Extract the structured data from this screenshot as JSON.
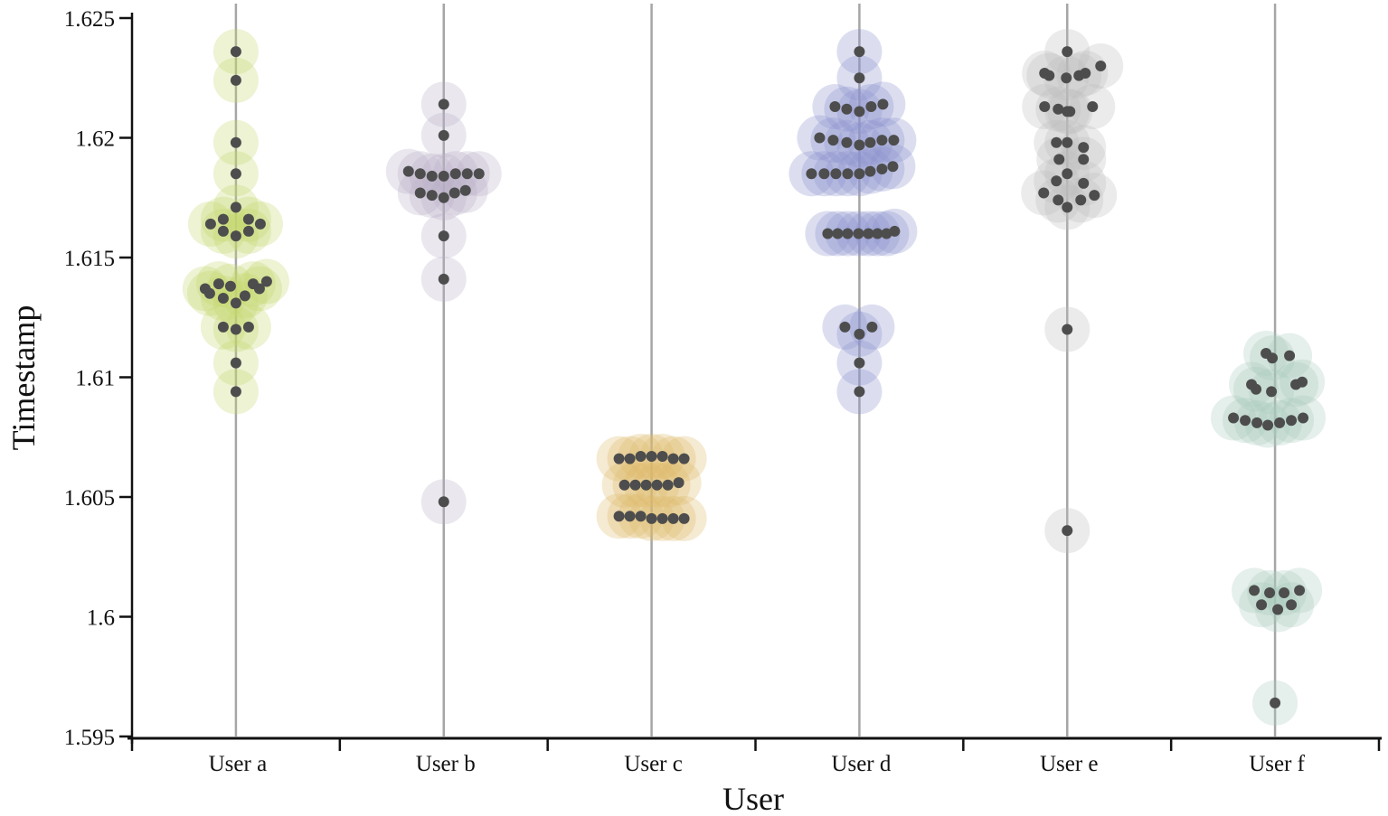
{
  "chart_data": {
    "type": "scatter",
    "subtype": "beeswarm",
    "title": "",
    "xlabel": "User",
    "ylabel": "Timestamp",
    "ylim": [
      1.595,
      1.625
    ],
    "yticks": [
      "1.595",
      "1.6",
      "1.605",
      "1.61",
      "1.615",
      "1.62",
      "1.625"
    ],
    "categories": [
      "User a",
      "User b",
      "User c",
      "User d",
      "User e",
      "User f"
    ],
    "grid": false,
    "legend": null,
    "series": [
      {
        "name": "User a",
        "color": "#c5d86d",
        "points": [
          [
            0,
            1.6236
          ],
          [
            0,
            1.6224
          ],
          [
            0,
            1.6198
          ],
          [
            0,
            1.6185
          ],
          [
            0,
            1.6171
          ],
          [
            -28,
            1.6164
          ],
          [
            -14,
            1.6166
          ],
          [
            14,
            1.6166
          ],
          [
            -14,
            1.6161
          ],
          [
            0,
            1.6159
          ],
          [
            14,
            1.6161
          ],
          [
            27,
            1.6164
          ],
          [
            -34,
            1.6137
          ],
          [
            -29,
            1.6135
          ],
          [
            -19,
            1.6139
          ],
          [
            -6,
            1.6138
          ],
          [
            -14,
            1.6133
          ],
          [
            0,
            1.6131
          ],
          [
            10,
            1.6134
          ],
          [
            19,
            1.6139
          ],
          [
            26,
            1.6137
          ],
          [
            34,
            1.614
          ],
          [
            -14,
            1.6121
          ],
          [
            0,
            1.612
          ],
          [
            14,
            1.6121
          ],
          [
            0,
            1.6106
          ],
          [
            0,
            1.6094
          ]
        ]
      },
      {
        "name": "User b",
        "color": "#b8b0c8",
        "points": [
          [
            0,
            1.6214
          ],
          [
            0,
            1.6201
          ],
          [
            -39,
            1.6186
          ],
          [
            -26,
            1.6185
          ],
          [
            -13,
            1.6184
          ],
          [
            0,
            1.6184
          ],
          [
            13,
            1.6185
          ],
          [
            26,
            1.6185
          ],
          [
            39,
            1.6185
          ],
          [
            -26,
            1.6177
          ],
          [
            -13,
            1.6176
          ],
          [
            0,
            1.6175
          ],
          [
            12,
            1.6177
          ],
          [
            24,
            1.6178
          ],
          [
            0,
            1.6159
          ],
          [
            0,
            1.6141
          ],
          [
            0,
            1.6048
          ]
        ]
      },
      {
        "name": "User c",
        "color": "#deb86a",
        "points": [
          [
            -36,
            1.6066
          ],
          [
            -24,
            1.6066
          ],
          [
            -12,
            1.6067
          ],
          [
            0,
            1.6067
          ],
          [
            12,
            1.6067
          ],
          [
            24,
            1.6066
          ],
          [
            36,
            1.6066
          ],
          [
            -30,
            1.6055
          ],
          [
            -18,
            1.6055
          ],
          [
            -6,
            1.6055
          ],
          [
            6,
            1.6055
          ],
          [
            18,
            1.6055
          ],
          [
            30,
            1.6056
          ],
          [
            -36,
            1.6042
          ],
          [
            -24,
            1.6042
          ],
          [
            -12,
            1.6042
          ],
          [
            0,
            1.6041
          ],
          [
            12,
            1.6041
          ],
          [
            24,
            1.6041
          ],
          [
            36,
            1.6041
          ]
        ]
      },
      {
        "name": "User d",
        "color": "#8c92cc",
        "points": [
          [
            0,
            1.6236
          ],
          [
            0,
            1.6225
          ],
          [
            -27,
            1.6213
          ],
          [
            -14,
            1.6212
          ],
          [
            0,
            1.6211
          ],
          [
            13,
            1.6213
          ],
          [
            26,
            1.6214
          ],
          [
            -44,
            1.62
          ],
          [
            -29,
            1.6199
          ],
          [
            -14,
            1.6198
          ],
          [
            0,
            1.6197
          ],
          [
            12,
            1.6198
          ],
          [
            25,
            1.6199
          ],
          [
            38,
            1.6199
          ],
          [
            -53,
            1.6185
          ],
          [
            -39,
            1.6185
          ],
          [
            -26,
            1.6185
          ],
          [
            -13,
            1.6185
          ],
          [
            0,
            1.6185
          ],
          [
            12,
            1.6186
          ],
          [
            25,
            1.6187
          ],
          [
            37,
            1.6188
          ],
          [
            -35,
            1.616
          ],
          [
            -24,
            1.616
          ],
          [
            -13,
            1.616
          ],
          [
            -1,
            1.616
          ],
          [
            10,
            1.616
          ],
          [
            20,
            1.616
          ],
          [
            30,
            1.616
          ],
          [
            39,
            1.6161
          ],
          [
            -16,
            1.6121
          ],
          [
            0,
            1.6118
          ],
          [
            14,
            1.6121
          ],
          [
            0,
            1.6106
          ],
          [
            0,
            1.6094
          ]
        ]
      },
      {
        "name": "User e",
        "color": "#bdbdbd",
        "points": [
          [
            0,
            1.6236
          ],
          [
            -25,
            1.6227
          ],
          [
            -20,
            1.6226
          ],
          [
            -1,
            1.6225
          ],
          [
            13,
            1.6226
          ],
          [
            20,
            1.6227
          ],
          [
            37,
            1.623
          ],
          [
            -25,
            1.6213
          ],
          [
            -10,
            1.6212
          ],
          [
            0,
            1.6211
          ],
          [
            3,
            1.6211
          ],
          [
            28,
            1.6213
          ],
          [
            -12,
            1.6198
          ],
          [
            0,
            1.6198
          ],
          [
            18,
            1.6196
          ],
          [
            -9,
            1.6191
          ],
          [
            18,
            1.6191
          ],
          [
            -12,
            1.6182
          ],
          [
            0,
            1.6185
          ],
          [
            18,
            1.6181
          ],
          [
            -26,
            1.6177
          ],
          [
            -10,
            1.6174
          ],
          [
            0,
            1.6171
          ],
          [
            15,
            1.6174
          ],
          [
            30,
            1.6176
          ],
          [
            0,
            1.612
          ],
          [
            0,
            1.6036
          ]
        ]
      },
      {
        "name": "User f",
        "color": "#a9cbbd",
        "points": [
          [
            -10,
            1.611
          ],
          [
            -3,
            1.6108
          ],
          [
            16,
            1.6109
          ],
          [
            -26,
            1.6097
          ],
          [
            -21,
            1.6095
          ],
          [
            -4,
            1.6094
          ],
          [
            23,
            1.6097
          ],
          [
            30,
            1.6098
          ],
          [
            -46,
            1.6083
          ],
          [
            -33,
            1.6082
          ],
          [
            -20,
            1.6081
          ],
          [
            -8,
            1.608
          ],
          [
            5,
            1.6081
          ],
          [
            18,
            1.6082
          ],
          [
            31,
            1.6083
          ],
          [
            -23,
            1.6011
          ],
          [
            -15,
            1.6005
          ],
          [
            -6,
            1.601
          ],
          [
            3,
            1.6003
          ],
          [
            10,
            1.601
          ],
          [
            18,
            1.6005
          ],
          [
            27,
            1.6011
          ],
          [
            0,
            1.5964
          ]
        ]
      }
    ],
    "marker": {
      "inner_color": "#4d4d4d",
      "inner_radius": 6,
      "halo_radius": 25,
      "halo_opacity": 0.3
    }
  },
  "axes": {
    "x_title": "User",
    "y_title": "Timestamp",
    "axis_color": "#111111",
    "stem_color": "#a6a6a6"
  }
}
